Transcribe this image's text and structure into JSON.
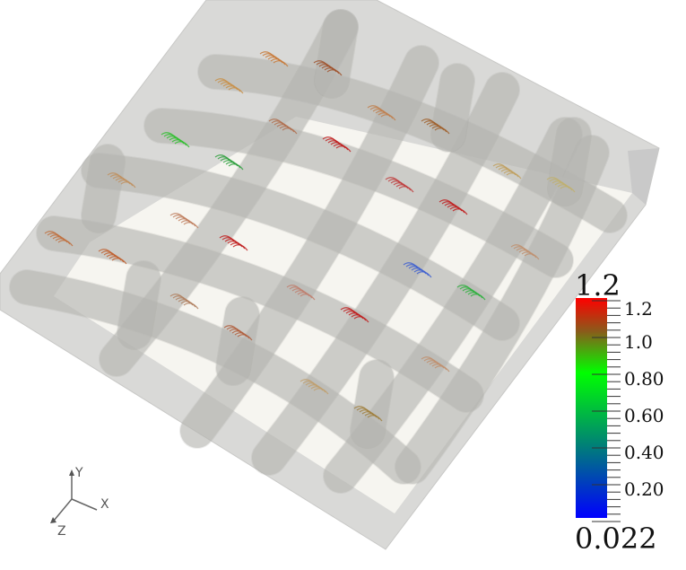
{
  "viewport": {
    "background": "#ffffff",
    "box_color": "#d4d4d2",
    "tube_color": "#b8b8b4"
  },
  "color_legend": {
    "max_label": "1.2",
    "min_label": "0.022",
    "range": [
      0.022,
      1.2
    ],
    "tick_labels": [
      "1.2",
      "1.0",
      "0.80",
      "0.60",
      "0.40",
      "0.20"
    ],
    "colormap": [
      "#0000ff",
      "#008080",
      "#00ff00",
      "#8b5a1a",
      "#ff0000"
    ]
  },
  "orientation_axes": {
    "x_label": "X",
    "y_label": "Y",
    "z_label": "Z"
  }
}
